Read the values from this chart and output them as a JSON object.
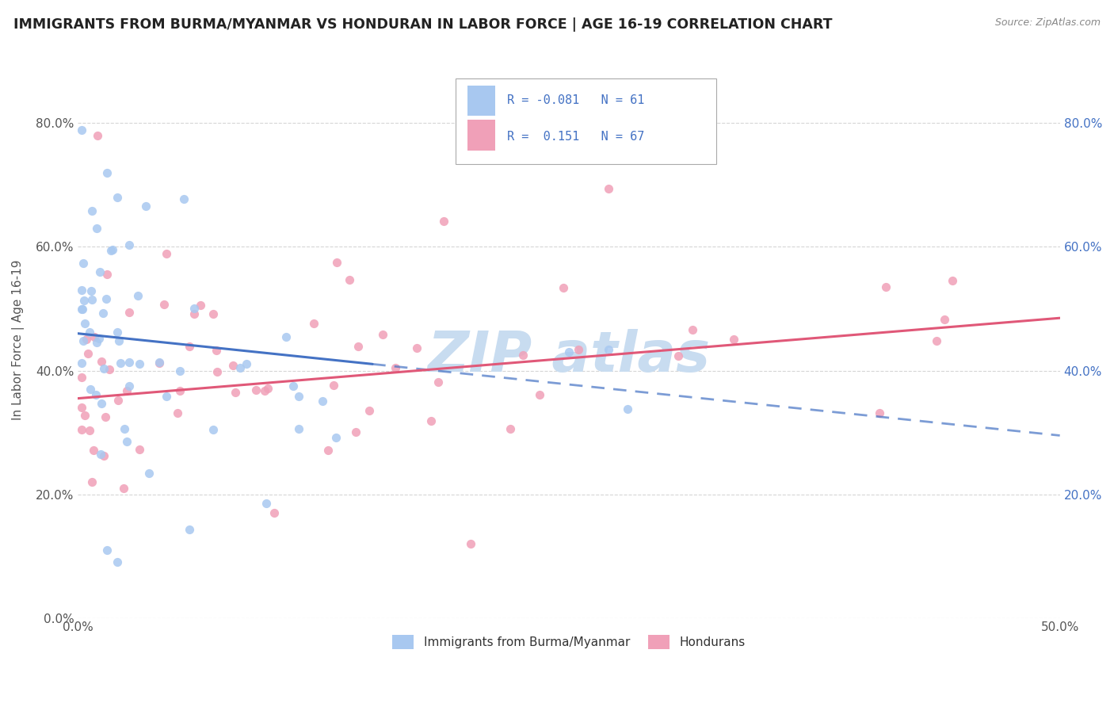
{
  "title": "IMMIGRANTS FROM BURMA/MYANMAR VS HONDURAN IN LABOR FORCE | AGE 16-19 CORRELATION CHART",
  "source": "Source: ZipAtlas.com",
  "ylabel": "In Labor Force | Age 16-19",
  "xmin": 0.0,
  "xmax": 0.5,
  "ymin": 0.0,
  "ymax": 0.9,
  "ytick_labels": [
    "0.0%",
    "20.0%",
    "40.0%",
    "60.0%",
    "80.0%"
  ],
  "ytick_values": [
    0.0,
    0.2,
    0.4,
    0.6,
    0.8
  ],
  "xtick_labels": [
    "0.0%",
    "",
    "",
    "",
    "",
    "50.0%"
  ],
  "xtick_values": [
    0.0,
    0.1,
    0.2,
    0.3,
    0.4,
    0.5
  ],
  "right_ytick_labels": [
    "20.0%",
    "40.0%",
    "60.0%",
    "80.0%"
  ],
  "right_ytick_values": [
    0.2,
    0.4,
    0.6,
    0.8
  ],
  "series1_color": "#A8C8F0",
  "series2_color": "#F0A0B8",
  "series1_line_color": "#4472C4",
  "series2_line_color": "#E05878",
  "series1_label": "Immigrants from Burma/Myanmar",
  "series2_label": "Hondurans",
  "series1_R": -0.081,
  "series1_N": 61,
  "series2_R": 0.151,
  "series2_N": 67,
  "watermark_color": "#C8DCF0",
  "bg_color": "#FFFFFF",
  "plot_bg_color": "#FFFFFF",
  "grid_color": "#CCCCCC",
  "title_color": "#222222",
  "axis_label_color": "#555555",
  "blue_line_y0": 0.46,
  "blue_line_y_end_solid": 0.4,
  "blue_line_x_end_solid": 0.15,
  "blue_line_y_end_dashed": 0.295,
  "pink_line_y0": 0.355,
  "pink_line_y1": 0.485
}
